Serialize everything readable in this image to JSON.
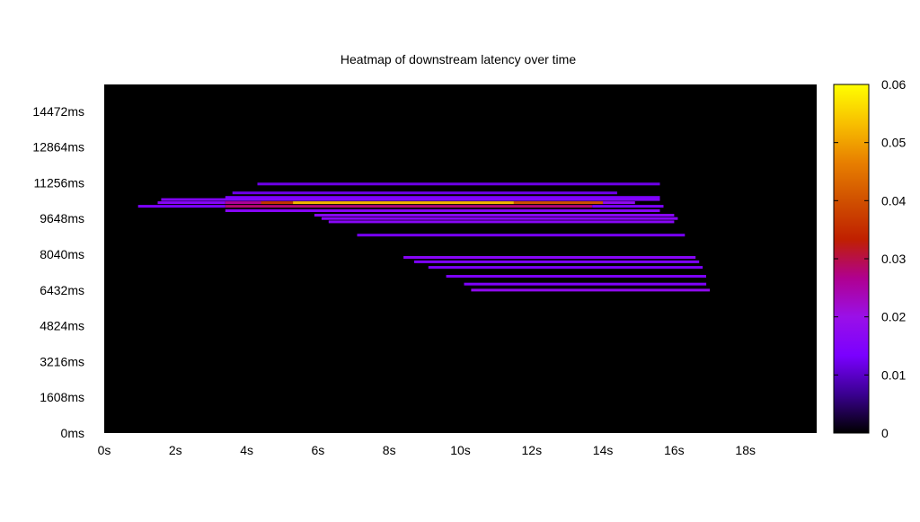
{
  "chart_data": {
    "type": "heatmap",
    "title": "Heatmap of downstream latency over time",
    "xlabel": "",
    "ylabel": "",
    "x_unit": "s",
    "y_unit": "ms",
    "xlim": [
      0,
      20
    ],
    "ylim": [
      0,
      15678
    ],
    "x_ticks": [
      "0s",
      "2s",
      "4s",
      "6s",
      "8s",
      "10s",
      "12s",
      "14s",
      "16s",
      "18s"
    ],
    "y_ticks": [
      "0ms",
      "1608ms",
      "3216ms",
      "4824ms",
      "6432ms",
      "8040ms",
      "9648ms",
      "11256ms",
      "12864ms",
      "14472ms"
    ],
    "colorbar": {
      "min": 0,
      "max": 0.06,
      "ticks": [
        "0",
        "0.01",
        "0.02",
        "0.03",
        "0.04",
        "0.05",
        "0.06"
      ],
      "colors": [
        "#000000",
        "#3a0090",
        "#7a00ff",
        "#9a10e8",
        "#b00090",
        "#c02000",
        "#d05000",
        "#e88000",
        "#f8c000",
        "#ffff00"
      ]
    },
    "background_color": "#000000",
    "cells": [
      {
        "x_start": 4.3,
        "x_end": 15.6,
        "y": 11200,
        "value": 0.012
      },
      {
        "x_start": 3.6,
        "x_end": 14.4,
        "y": 10800,
        "value": 0.012
      },
      {
        "x_start": 3.4,
        "x_end": 15.6,
        "y": 10600,
        "value": 0.014
      },
      {
        "x_start": 1.6,
        "x_end": 15.6,
        "y": 10500,
        "value": 0.015
      },
      {
        "x_start": 1.5,
        "x_end": 3.4,
        "y": 10360,
        "value": 0.016
      },
      {
        "x_start": 3.4,
        "x_end": 4.4,
        "y": 10360,
        "value": 0.026
      },
      {
        "x_start": 4.4,
        "x_end": 5.3,
        "y": 10360,
        "value": 0.036
      },
      {
        "x_start": 5.3,
        "x_end": 11.5,
        "y": 10360,
        "value": 0.052
      },
      {
        "x_start": 11.5,
        "x_end": 14.0,
        "y": 10360,
        "value": 0.04
      },
      {
        "x_start": 14.0,
        "x_end": 14.9,
        "y": 10360,
        "value": 0.018
      },
      {
        "x_start": 0.95,
        "x_end": 3.4,
        "y": 10200,
        "value": 0.014
      },
      {
        "x_start": 3.4,
        "x_end": 13.7,
        "y": 10200,
        "value": 0.028
      },
      {
        "x_start": 13.7,
        "x_end": 15.7,
        "y": 10200,
        "value": 0.014
      },
      {
        "x_start": 3.4,
        "x_end": 15.6,
        "y": 10000,
        "value": 0.016
      },
      {
        "x_start": 5.9,
        "x_end": 16.0,
        "y": 9800,
        "value": 0.016
      },
      {
        "x_start": 6.1,
        "x_end": 16.1,
        "y": 9650,
        "value": 0.016
      },
      {
        "x_start": 6.3,
        "x_end": 16.0,
        "y": 9500,
        "value": 0.016
      },
      {
        "x_start": 7.1,
        "x_end": 16.3,
        "y": 8900,
        "value": 0.013
      },
      {
        "x_start": 8.4,
        "x_end": 16.6,
        "y": 7900,
        "value": 0.016
      },
      {
        "x_start": 8.7,
        "x_end": 16.7,
        "y": 7700,
        "value": 0.014
      },
      {
        "x_start": 9.1,
        "x_end": 16.8,
        "y": 7450,
        "value": 0.014
      },
      {
        "x_start": 9.6,
        "x_end": 16.9,
        "y": 7050,
        "value": 0.014
      },
      {
        "x_start": 10.1,
        "x_end": 16.9,
        "y": 6700,
        "value": 0.014
      },
      {
        "x_start": 10.3,
        "x_end": 17.0,
        "y": 6430,
        "value": 0.018
      }
    ]
  }
}
